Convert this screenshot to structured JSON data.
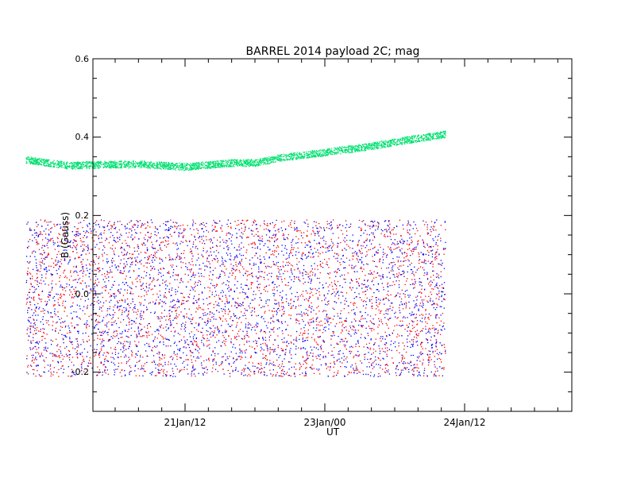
{
  "chart_data": {
    "type": "scatter",
    "title": "BARREL 2014 payload 2C; mag",
    "xlabel": "UT",
    "ylabel": "B (Gauss)",
    "x_tick_labels": [
      "21Jan/12",
      "23Jan/00",
      "24Jan/12"
    ],
    "y_tick_labels": [
      "-0.2",
      "0.0",
      "0.2",
      "0.4",
      "0.6"
    ],
    "ylim": [
      -0.3,
      0.6
    ],
    "grid": false,
    "series": [
      {
        "color": "#00e070",
        "curve": [
          {
            "t": "20Jan 19:00",
            "b": 0.343
          },
          {
            "t": "21Jan 06:00",
            "b": 0.328
          },
          {
            "t": "21Jan 12:00",
            "b": 0.33
          },
          {
            "t": "22Jan 00:00",
            "b": 0.332
          },
          {
            "t": "22Jan 12:00",
            "b": 0.325
          },
          {
            "t": "23Jan 00:00",
            "b": 0.335
          },
          {
            "t": "23Jan 06:00",
            "b": 0.335
          },
          {
            "t": "23Jan 12:00",
            "b": 0.348
          },
          {
            "t": "24Jan 00:00",
            "b": 0.362
          },
          {
            "t": "24Jan 12:00",
            "b": 0.378
          },
          {
            "t": "25Jan 00:00",
            "b": 0.398
          },
          {
            "t": "25Jan 07:00",
            "b": 0.408
          }
        ],
        "band_halfwidth": 0.009
      },
      {
        "color": "#ff0000",
        "t_range": [
          "20Jan 19:00",
          "25Jan 07:00"
        ],
        "b_range": [
          -0.21,
          0.19
        ]
      },
      {
        "color": "#0000ff",
        "t_range": [
          "20Jan 19:00",
          "25Jan 07:00"
        ],
        "b_range": [
          -0.21,
          0.19
        ]
      }
    ]
  }
}
